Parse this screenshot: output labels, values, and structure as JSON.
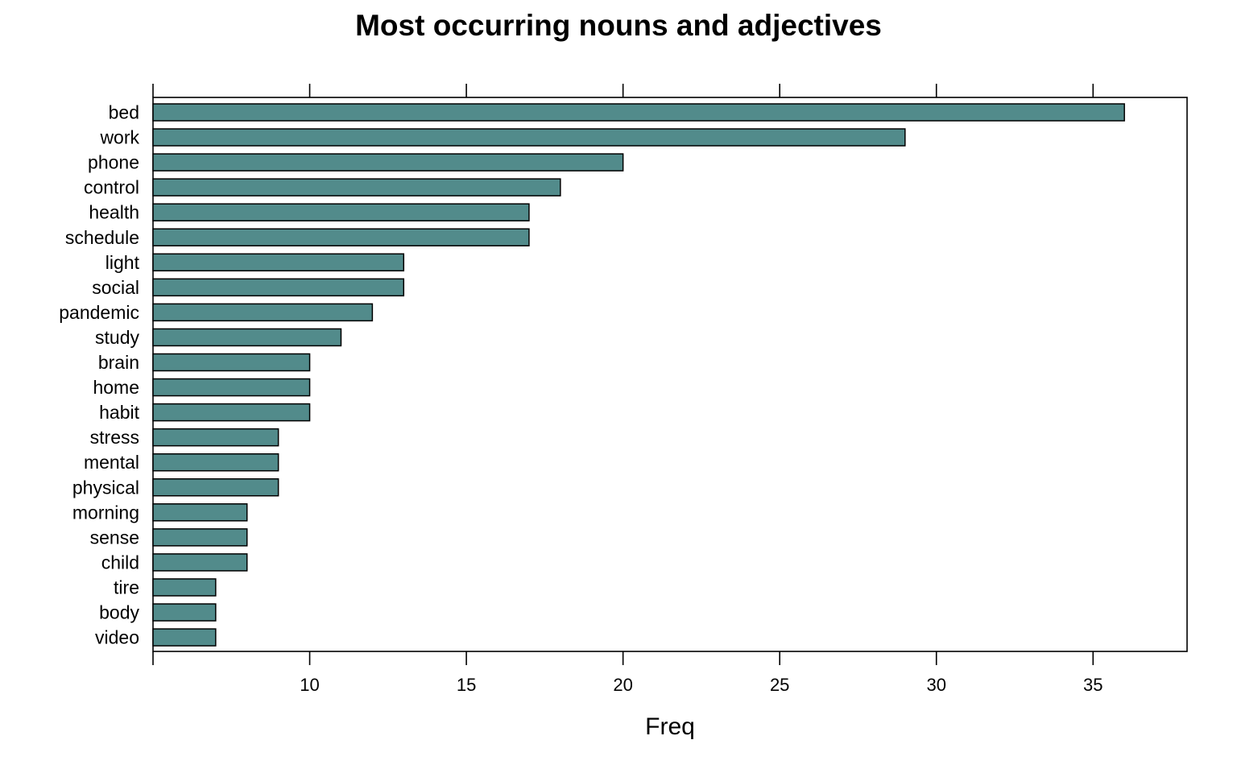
{
  "chart_data": {
    "type": "bar",
    "orientation": "horizontal",
    "title": "Most occurring nouns and adjectives",
    "xlabel": "Freq",
    "ylabel": "",
    "categories": [
      "bed",
      "work",
      "phone",
      "control",
      "health",
      "schedule",
      "light",
      "social",
      "pandemic",
      "study",
      "brain",
      "home",
      "habit",
      "stress",
      "mental",
      "physical",
      "morning",
      "sense",
      "child",
      "tire",
      "body",
      "video"
    ],
    "values": [
      36,
      29,
      20,
      18,
      17,
      17,
      13,
      13,
      12,
      11,
      10,
      10,
      10,
      9,
      9,
      9,
      8,
      8,
      8,
      7,
      7,
      7
    ],
    "xlim": [
      5,
      38
    ],
    "xticks": [
      10,
      15,
      20,
      25,
      30,
      35
    ],
    "xtick_labels": [
      "10",
      "15",
      "20",
      "25",
      "30",
      "35"
    ],
    "top_axis_ticks": true,
    "grid": false,
    "legend": "none",
    "bar_color": "#528b8b",
    "bar_edge_color": "#000000"
  }
}
